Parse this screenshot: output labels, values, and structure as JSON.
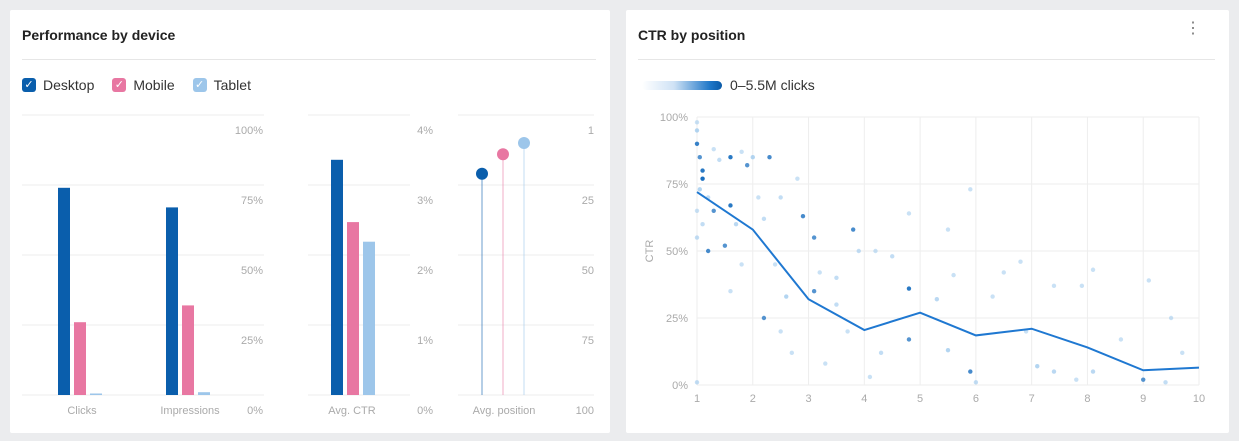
{
  "left": {
    "title": "Performance by device",
    "legend": [
      {
        "label": "Desktop",
        "color": "#0a5eac"
      },
      {
        "label": "Mobile",
        "color": "#e877a2"
      },
      {
        "label": "Tablet",
        "color": "#9dc6ea"
      }
    ]
  },
  "right": {
    "title": "CTR by position",
    "menu_icon": "kebab-menu-icon",
    "gradient_label": "0–5.5M clicks"
  },
  "chart_data": [
    {
      "type": "bar",
      "categories": [
        "Clicks",
        "Impressions"
      ],
      "series": [
        {
          "name": "Desktop",
          "values": [
            74,
            67
          ]
        },
        {
          "name": "Mobile",
          "values": [
            26,
            32
          ]
        },
        {
          "name": "Tablet",
          "values": [
            0.5,
            1
          ]
        }
      ],
      "ylim": [
        0,
        100
      ],
      "yticks": [
        "100%",
        "75%",
        "50%",
        "25%",
        "0%"
      ],
      "grid": true
    },
    {
      "type": "bar",
      "categories": [
        "Avg. CTR"
      ],
      "series": [
        {
          "name": "Desktop",
          "values": [
            3.36
          ]
        },
        {
          "name": "Mobile",
          "values": [
            2.47
          ]
        },
        {
          "name": "Tablet",
          "values": [
            2.19
          ]
        }
      ],
      "ylim": [
        0,
        4
      ],
      "yticks": [
        "4%",
        "3%",
        "2%",
        "1%",
        "0%"
      ],
      "grid": true
    },
    {
      "type": "scatter",
      "categories": [
        "Avg. position"
      ],
      "series": [
        {
          "name": "Desktop",
          "values": [
            21
          ]
        },
        {
          "name": "Mobile",
          "values": [
            14
          ]
        },
        {
          "name": "Tablet",
          "values": [
            10
          ]
        }
      ],
      "ylim": [
        100,
        1
      ],
      "yticks": [
        "1",
        "25",
        "50",
        "75",
        "100"
      ],
      "grid": true
    },
    {
      "type": "scatter",
      "title": "CTR by position",
      "ylabel": "CTR",
      "xlim": [
        1,
        10
      ],
      "ylim": [
        0,
        100
      ],
      "xticks": [
        "1",
        "2",
        "3",
        "4",
        "5",
        "6",
        "7",
        "8",
        "9",
        "10"
      ],
      "yticks": [
        "0%",
        "25%",
        "50%",
        "75%",
        "100%"
      ],
      "grid": true,
      "line": {
        "x": [
          1,
          2,
          3,
          4,
          5,
          6,
          7,
          8,
          9,
          10
        ],
        "y": [
          72,
          58,
          32,
          20.5,
          27,
          18.5,
          21,
          14,
          5.5,
          6.5
        ]
      },
      "points": [
        [
          1,
          98,
          0.2
        ],
        [
          1,
          95,
          0.5
        ],
        [
          1,
          90,
          0.8
        ],
        [
          1.05,
          85,
          0.6
        ],
        [
          1.1,
          80,
          0.9
        ],
        [
          1.1,
          77,
          1
        ],
        [
          1.05,
          73,
          0.5
        ],
        [
          1.2,
          70,
          0.3
        ],
        [
          1,
          65,
          0.2
        ],
        [
          1.1,
          60,
          0.3
        ],
        [
          1,
          55,
          0.3
        ],
        [
          1.2,
          50,
          0.7
        ],
        [
          1.3,
          88,
          0.2
        ],
        [
          1.4,
          84,
          0.3
        ],
        [
          1.6,
          85,
          0.9
        ],
        [
          1.6,
          67,
          0.9
        ],
        [
          1.3,
          65,
          0.6
        ],
        [
          1.5,
          52,
          0.6
        ],
        [
          1.8,
          87,
          0.2
        ],
        [
          1.9,
          82,
          0.6
        ],
        [
          2,
          85,
          0.5
        ],
        [
          2.3,
          85,
          0.7
        ],
        [
          2.1,
          70,
          0.2
        ],
        [
          1.7,
          60,
          0.4
        ],
        [
          1.8,
          45,
          0.2
        ],
        [
          1.6,
          35,
          0.2
        ],
        [
          2.2,
          62,
          0.3
        ],
        [
          2.5,
          70,
          0.3
        ],
        [
          2.8,
          77,
          0.2
        ],
        [
          2.9,
          63,
          0.7
        ],
        [
          3.1,
          55,
          0.6
        ],
        [
          2.4,
          45,
          0.2
        ],
        [
          2.6,
          33,
          0.5
        ],
        [
          2.2,
          25,
          0.6
        ],
        [
          2.5,
          20,
          0.2
        ],
        [
          2.7,
          12,
          0.2
        ],
        [
          3.1,
          35,
          0.6
        ],
        [
          3.2,
          42,
          0.2
        ],
        [
          3.5,
          40,
          0.3
        ],
        [
          3.8,
          58,
          0.7
        ],
        [
          3.9,
          50,
          0.3
        ],
        [
          3.5,
          30,
          0.3
        ],
        [
          3.7,
          20,
          0.2
        ],
        [
          4.2,
          50,
          0.2
        ],
        [
          4.5,
          48,
          0.3
        ],
        [
          4.8,
          64,
          0.2
        ],
        [
          4.8,
          36,
          0.9
        ],
        [
          4.8,
          17,
          0.6
        ],
        [
          4.3,
          12,
          0.3
        ],
        [
          5.3,
          32,
          0.4
        ],
        [
          5.5,
          58,
          0.2
        ],
        [
          5.6,
          41,
          0.2
        ],
        [
          5.9,
          73,
          0.2
        ],
        [
          5.5,
          13,
          0.5
        ],
        [
          5.9,
          5,
          0.7
        ],
        [
          6.5,
          42,
          0.2
        ],
        [
          6.8,
          46,
          0.2
        ],
        [
          6.3,
          33,
          0.2
        ],
        [
          6.9,
          20,
          0.2
        ],
        [
          7.1,
          7,
          0.5
        ],
        [
          7.4,
          37,
          0.2
        ],
        [
          7.4,
          5,
          0.4
        ],
        [
          7.9,
          37,
          0.2
        ],
        [
          8.1,
          43,
          0.2
        ],
        [
          8.6,
          17,
          0.2
        ],
        [
          8.1,
          5,
          0.4
        ],
        [
          9.1,
          39,
          0.2
        ],
        [
          9.5,
          25,
          0.2
        ],
        [
          9,
          2,
          0.6
        ],
        [
          9.7,
          12,
          0.2
        ],
        [
          9.4,
          1,
          0.3
        ],
        [
          3.3,
          8,
          0.2
        ],
        [
          4.1,
          3,
          0.2
        ],
        [
          6,
          1,
          0.3
        ],
        [
          1,
          1,
          0.3
        ],
        [
          7.8,
          2,
          0.2
        ]
      ]
    }
  ]
}
